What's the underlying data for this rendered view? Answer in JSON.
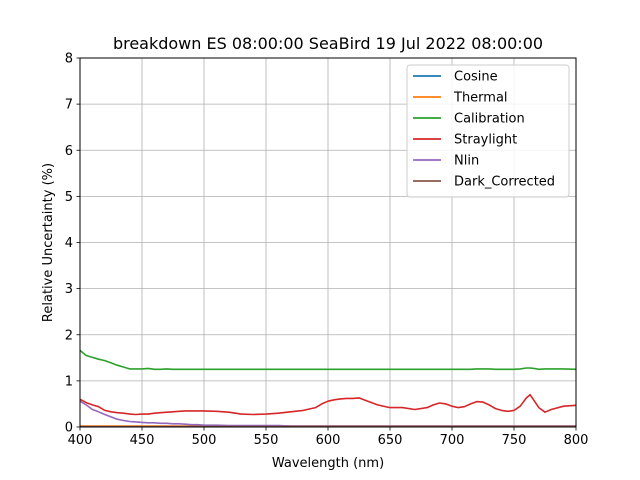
{
  "chart_data": {
    "type": "line",
    "title": "breakdown ES 08:00:00 SeaBird 19 Jul 2022 08:00:00",
    "xlabel": "Wavelength (nm)",
    "ylabel": "Relative Uncertainty (%)",
    "xlim": [
      400,
      800
    ],
    "ylim": [
      0,
      8
    ],
    "xticks": [
      400,
      450,
      500,
      550,
      600,
      650,
      700,
      750,
      800
    ],
    "yticks": [
      0,
      1,
      2,
      3,
      4,
      5,
      6,
      7,
      8
    ],
    "grid": true,
    "legend_position": "top-right",
    "x": [
      400,
      405,
      410,
      415,
      420,
      425,
      430,
      435,
      440,
      445,
      450,
      455,
      460,
      465,
      470,
      475,
      480,
      485,
      490,
      495,
      500,
      510,
      520,
      530,
      540,
      550,
      560,
      570,
      580,
      590,
      595,
      600,
      605,
      610,
      615,
      620,
      625,
      630,
      640,
      650,
      660,
      670,
      680,
      685,
      690,
      695,
      700,
      705,
      710,
      715,
      720,
      725,
      730,
      735,
      740,
      745,
      750,
      755,
      760,
      763,
      766,
      770,
      775,
      780,
      790,
      800
    ],
    "series": [
      {
        "name": "Cosine",
        "color": "#1f77b4",
        "values": [
          0.01,
          0.01,
          0.01,
          0.01,
          0.01,
          0.01,
          0.01,
          0.01,
          0.01,
          0.01,
          0.01,
          0.01,
          0.01,
          0.01,
          0.01,
          0.01,
          0.01,
          0.01,
          0.01,
          0.01,
          0.01,
          0.01,
          0.01,
          0.01,
          0.01,
          0.01,
          0.01,
          0.01,
          0.01,
          0.01,
          0.01,
          0.01,
          0.01,
          0.01,
          0.01,
          0.01,
          0.01,
          0.01,
          0.01,
          0.01,
          0.01,
          0.01,
          0.01,
          0.01,
          0.01,
          0.01,
          0.01,
          0.01,
          0.01,
          0.01,
          0.01,
          0.01,
          0.01,
          0.01,
          0.01,
          0.01,
          0.01,
          0.01,
          0.01,
          0.01,
          0.01,
          0.01,
          0.01,
          0.01,
          0.01,
          0.01
        ]
      },
      {
        "name": "Thermal",
        "color": "#ff7f0e",
        "values": [
          0.02,
          0.02,
          0.02,
          0.02,
          0.02,
          0.02,
          0.02,
          0.02,
          0.02,
          0.02,
          0.02,
          0.02,
          0.02,
          0.02,
          0.02,
          0.02,
          0.02,
          0.02,
          0.02,
          0.02,
          0.02,
          0.02,
          0.02,
          0.02,
          0.02,
          0.02,
          0.02,
          0.02,
          0.02,
          0.02,
          0.02,
          0.02,
          0.02,
          0.02,
          0.02,
          0.02,
          0.02,
          0.02,
          0.02,
          0.02,
          0.02,
          0.02,
          0.02,
          0.02,
          0.02,
          0.02,
          0.02,
          0.02,
          0.02,
          0.02,
          0.02,
          0.02,
          0.02,
          0.02,
          0.02,
          0.02,
          0.02,
          0.02,
          0.02,
          0.02,
          0.02,
          0.02,
          0.02,
          0.02,
          0.02,
          0.02
        ]
      },
      {
        "name": "Calibration",
        "color": "#2ca02c",
        "values": [
          1.66,
          1.55,
          1.51,
          1.47,
          1.44,
          1.39,
          1.34,
          1.3,
          1.26,
          1.26,
          1.26,
          1.27,
          1.25,
          1.25,
          1.26,
          1.25,
          1.25,
          1.25,
          1.25,
          1.25,
          1.25,
          1.25,
          1.25,
          1.25,
          1.25,
          1.25,
          1.25,
          1.25,
          1.25,
          1.25,
          1.25,
          1.25,
          1.25,
          1.25,
          1.25,
          1.25,
          1.25,
          1.25,
          1.25,
          1.25,
          1.25,
          1.25,
          1.25,
          1.25,
          1.25,
          1.25,
          1.25,
          1.25,
          1.25,
          1.25,
          1.26,
          1.26,
          1.26,
          1.25,
          1.25,
          1.25,
          1.25,
          1.26,
          1.28,
          1.28,
          1.27,
          1.25,
          1.26,
          1.26,
          1.26,
          1.25
        ]
      },
      {
        "name": "Straylight",
        "color": "#d62728",
        "values": [
          0.6,
          0.53,
          0.48,
          0.44,
          0.36,
          0.33,
          0.31,
          0.3,
          0.28,
          0.27,
          0.28,
          0.28,
          0.3,
          0.31,
          0.32,
          0.33,
          0.34,
          0.35,
          0.35,
          0.35,
          0.35,
          0.34,
          0.32,
          0.28,
          0.27,
          0.28,
          0.3,
          0.33,
          0.36,
          0.42,
          0.5,
          0.56,
          0.59,
          0.61,
          0.62,
          0.62,
          0.63,
          0.58,
          0.48,
          0.42,
          0.42,
          0.38,
          0.42,
          0.48,
          0.52,
          0.5,
          0.45,
          0.42,
          0.44,
          0.5,
          0.55,
          0.54,
          0.48,
          0.4,
          0.36,
          0.34,
          0.36,
          0.45,
          0.63,
          0.7,
          0.58,
          0.42,
          0.32,
          0.38,
          0.45,
          0.47
        ]
      },
      {
        "name": "Nlin",
        "color": "#9467bd",
        "values": [
          0.56,
          0.48,
          0.38,
          0.33,
          0.27,
          0.22,
          0.17,
          0.14,
          0.12,
          0.11,
          0.1,
          0.09,
          0.09,
          0.08,
          0.08,
          0.07,
          0.07,
          0.06,
          0.05,
          0.05,
          0.04,
          0.04,
          0.03,
          0.03,
          0.03,
          0.03,
          0.03,
          0.02,
          0.02,
          0.02,
          0.02,
          0.02,
          0.02,
          0.02,
          0.02,
          0.02,
          0.02,
          0.02,
          0.02,
          0.02,
          0.02,
          0.02,
          0.02,
          0.02,
          0.02,
          0.02,
          0.02,
          0.02,
          0.02,
          0.02,
          0.02,
          0.02,
          0.02,
          0.02,
          0.02,
          0.02,
          0.02,
          0.02,
          0.02,
          0.02,
          0.02,
          0.02,
          0.02,
          0.02,
          0.02,
          0.02
        ]
      },
      {
        "name": "Dark_Corrected",
        "color": "#8c564b",
        "values": [
          0.01,
          0.01,
          0.01,
          0.01,
          0.01,
          0.01,
          0.01,
          0.01,
          0.01,
          0.01,
          0.01,
          0.01,
          0.01,
          0.01,
          0.01,
          0.01,
          0.01,
          0.01,
          0.01,
          0.01,
          0.01,
          0.01,
          0.01,
          0.01,
          0.01,
          0.01,
          0.01,
          0.01,
          0.01,
          0.01,
          0.01,
          0.01,
          0.01,
          0.01,
          0.01,
          0.01,
          0.01,
          0.01,
          0.01,
          0.01,
          0.01,
          0.01,
          0.01,
          0.01,
          0.01,
          0.01,
          0.01,
          0.01,
          0.01,
          0.01,
          0.01,
          0.01,
          0.01,
          0.01,
          0.01,
          0.01,
          0.01,
          0.01,
          0.01,
          0.01,
          0.01,
          0.01,
          0.01,
          0.01,
          0.01,
          0.01
        ]
      }
    ]
  }
}
